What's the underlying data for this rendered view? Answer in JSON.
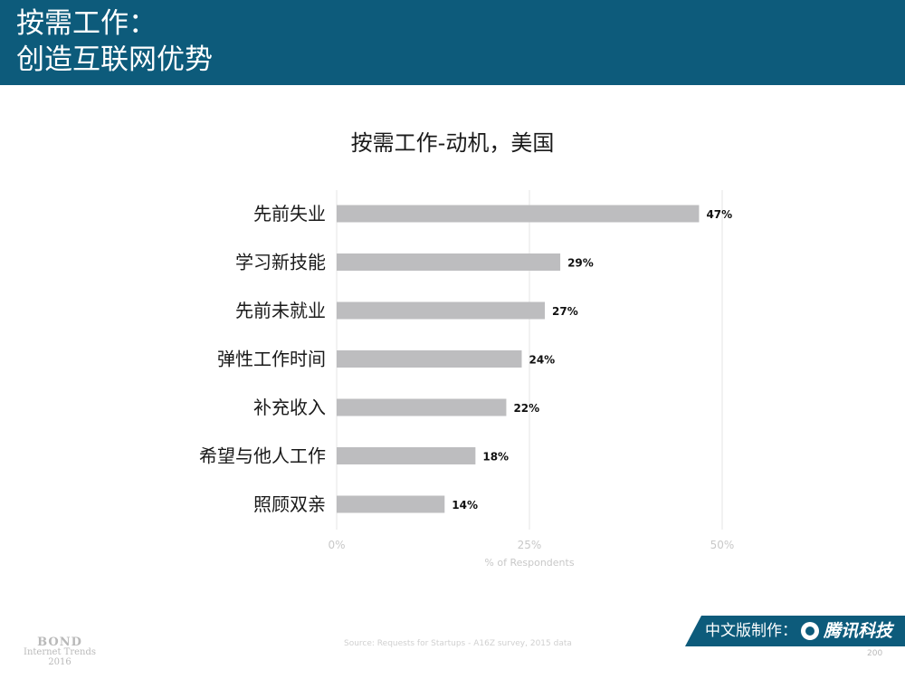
{
  "header": {
    "title_line1": "按需工作：",
    "title_line2": "创造互联网优势"
  },
  "chart_data": {
    "type": "bar",
    "orientation": "horizontal",
    "title": "按需工作-动机，美国",
    "categories": [
      "先前失业",
      "学习新技能",
      "先前未就业",
      "弹性工作时间",
      "补充收入",
      "希望与他人工作",
      "照顾双亲"
    ],
    "values": [
      47,
      29,
      27,
      24,
      22,
      18,
      14
    ],
    "value_labels": [
      "47%",
      "29%",
      "27%",
      "24%",
      "22%",
      "18%",
      "14%"
    ],
    "xlim": [
      0,
      50
    ],
    "ticks": [
      0,
      25,
      50
    ],
    "tick_labels": [
      "0%",
      "25%",
      "50%"
    ],
    "xlabel": "% of Respondents",
    "grid": true,
    "bar_color": "#bdbdbf"
  },
  "footer": {
    "bond_name": "BOND",
    "bond_sub": "Internet Trends",
    "bond_year": "2016",
    "source": "Source: Requests for Startups - A16Z survey, 2015 data",
    "badge_label": "中文版制作：",
    "badge_brand": "腾讯科技",
    "page_number": "200"
  },
  "colors": {
    "header_bg": "#0d5b7b",
    "badge_bg": "#0d5b7b"
  }
}
